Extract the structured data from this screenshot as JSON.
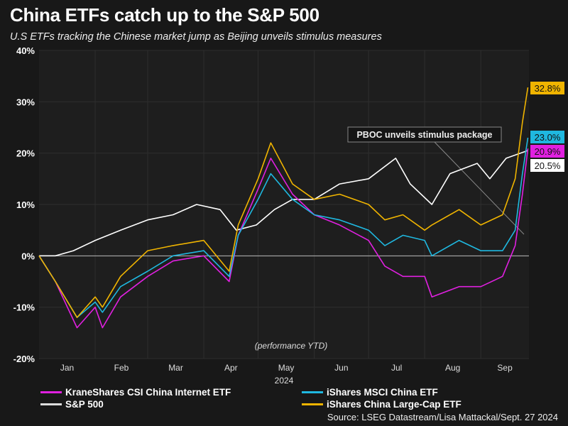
{
  "chart_data": {
    "type": "line",
    "title": "China ETFs catch up to the S&P 500",
    "subtitle": "U.S ETFs tracking the Chinese market jump as Beijing unveils stimulus measures",
    "xlabel": "2024",
    "ylabel": "",
    "inner_note": "(performance YTD)",
    "ylim": [
      -20,
      40
    ],
    "yticks": [
      "40%",
      "30%",
      "20%",
      "10%",
      "0%",
      "-10%",
      "-20%"
    ],
    "ytick_values": [
      40,
      30,
      20,
      10,
      0,
      -10,
      -20
    ],
    "xticks": [
      "Jan",
      "Feb",
      "Mar",
      "Apr",
      "May",
      "Jun",
      "Jul",
      "Aug",
      "Sep"
    ],
    "grid": true,
    "legend_position": "bottom",
    "annotation": {
      "text": "PBOC unveils stimulus package",
      "date": "2024-09-24"
    },
    "series": [
      {
        "name": "KraneShares CSI China Internet ETF",
        "color": "#e020e0",
        "end_label": "20.9%",
        "x": [
          "2024-01-01",
          "2024-01-10",
          "2024-01-22",
          "2024-02-01",
          "2024-02-05",
          "2024-02-15",
          "2024-03-01",
          "2024-03-15",
          "2024-04-01",
          "2024-04-15",
          "2024-04-20",
          "2024-05-01",
          "2024-05-08",
          "2024-05-20",
          "2024-06-01",
          "2024-06-15",
          "2024-07-01",
          "2024-07-10",
          "2024-07-20",
          "2024-08-01",
          "2024-08-05",
          "2024-08-20",
          "2024-09-01",
          "2024-09-13",
          "2024-09-20",
          "2024-09-24",
          "2024-09-27"
        ],
        "y": [
          0,
          -5,
          -14,
          -10,
          -14,
          -8,
          -4,
          -1,
          0,
          -5,
          4,
          13,
          19,
          12,
          8,
          6,
          3,
          -2,
          -4,
          -4,
          -8,
          -6,
          -6,
          -4,
          2,
          12,
          20.9
        ]
      },
      {
        "name": "iShares MSCI China ETF",
        "color": "#1fb8e0",
        "end_label": "23.0%",
        "x": [
          "2024-01-01",
          "2024-01-10",
          "2024-01-22",
          "2024-02-01",
          "2024-02-05",
          "2024-02-15",
          "2024-03-01",
          "2024-03-15",
          "2024-04-01",
          "2024-04-15",
          "2024-04-20",
          "2024-05-01",
          "2024-05-08",
          "2024-05-20",
          "2024-06-01",
          "2024-06-15",
          "2024-07-01",
          "2024-07-10",
          "2024-07-20",
          "2024-08-01",
          "2024-08-05",
          "2024-08-20",
          "2024-09-01",
          "2024-09-13",
          "2024-09-20",
          "2024-09-24",
          "2024-09-27"
        ],
        "y": [
          0,
          -5,
          -12,
          -9,
          -11,
          -6,
          -3,
          0,
          1,
          -4,
          4,
          11,
          16,
          11,
          8,
          7,
          5,
          2,
          4,
          3,
          0,
          3,
          1,
          1,
          5,
          16,
          23.0
        ]
      },
      {
        "name": "S&P 500",
        "color": "#ffffff",
        "end_label": "20.5%",
        "x": [
          "2024-01-01",
          "2024-01-10",
          "2024-01-20",
          "2024-02-01",
          "2024-02-15",
          "2024-03-01",
          "2024-03-15",
          "2024-03-28",
          "2024-04-10",
          "2024-04-19",
          "2024-04-30",
          "2024-05-10",
          "2024-05-20",
          "2024-06-01",
          "2024-06-15",
          "2024-07-01",
          "2024-07-16",
          "2024-07-24",
          "2024-08-05",
          "2024-08-15",
          "2024-08-30",
          "2024-09-06",
          "2024-09-15",
          "2024-09-27"
        ],
        "y": [
          0,
          0,
          1,
          3,
          5,
          7,
          8,
          10,
          9,
          5,
          6,
          9,
          11,
          11,
          14,
          15,
          19,
          14,
          10,
          16,
          18,
          15,
          19,
          20.5
        ]
      },
      {
        "name": "iShares China Large-Cap ETF",
        "color": "#f0b400",
        "end_label": "32.8%",
        "x": [
          "2024-01-01",
          "2024-01-10",
          "2024-01-22",
          "2024-02-01",
          "2024-02-05",
          "2024-02-15",
          "2024-03-01",
          "2024-03-15",
          "2024-04-01",
          "2024-04-15",
          "2024-04-20",
          "2024-05-01",
          "2024-05-08",
          "2024-05-20",
          "2024-06-01",
          "2024-06-15",
          "2024-07-01",
          "2024-07-10",
          "2024-07-20",
          "2024-08-01",
          "2024-08-05",
          "2024-08-20",
          "2024-09-01",
          "2024-09-13",
          "2024-09-20",
          "2024-09-24",
          "2024-09-27"
        ],
        "y": [
          0,
          -5,
          -12,
          -8,
          -10,
          -4,
          1,
          2,
          3,
          -3,
          6,
          15,
          22,
          14,
          11,
          12,
          10,
          7,
          8,
          5,
          6,
          9,
          6,
          8,
          15,
          26,
          32.8
        ]
      }
    ]
  },
  "source": "Source: LSEG Datastream/Lisa Mattackal/Sept. 27 2024"
}
